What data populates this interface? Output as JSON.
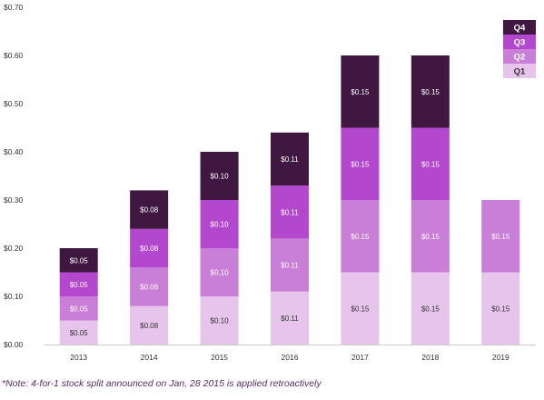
{
  "chart_data": {
    "type": "bar",
    "stacked": true,
    "title": "",
    "xlabel": "",
    "ylabel": "",
    "categories": [
      "2013",
      "2014",
      "2015",
      "2016",
      "2017",
      "2018",
      "2019"
    ],
    "ylim": [
      0,
      0.7
    ],
    "yticks": [
      "$0.00",
      "$0.10",
      "$0.20",
      "$0.30",
      "$0.40",
      "$0.50",
      "$0.60",
      "$0.70"
    ],
    "grid": false,
    "legend_position": "top-right",
    "series": [
      {
        "name": "Q1",
        "color": "#e6c4ec",
        "values": [
          0.05,
          0.08,
          0.1,
          0.11,
          0.15,
          0.15,
          0.15
        ],
        "labels": [
          "$0.05",
          "$0.08",
          "$0.10",
          "$0.11",
          "$0.15",
          "$0.15",
          "$0.15"
        ]
      },
      {
        "name": "Q2",
        "color": "#c97ed8",
        "values": [
          0.05,
          0.08,
          0.1,
          0.11,
          0.15,
          0.15,
          0.15
        ],
        "labels": [
          "$0.05",
          "$0.08",
          "$0.10",
          "$0.11",
          "$0.15",
          "$0.15",
          "$0.15"
        ]
      },
      {
        "name": "Q3",
        "color": "#b348cf",
        "values": [
          0.05,
          0.08,
          0.1,
          0.11,
          0.15,
          0.15,
          null
        ],
        "labels": [
          "$0.05",
          "$0.08",
          "$0.10",
          "$0.11",
          "$0.15",
          "$0.15",
          null
        ]
      },
      {
        "name": "Q4",
        "color": "#3f1740",
        "values": [
          0.05,
          0.08,
          0.1,
          0.11,
          0.15,
          0.15,
          null
        ],
        "labels": [
          "$0.05",
          "$0.08",
          "$0.10",
          "$0.11",
          "$0.15",
          "$0.15",
          null
        ]
      }
    ]
  },
  "footnote": "*Note: 4-for-1 stock split announced on Jan, 28 2015 is applied retroactively"
}
